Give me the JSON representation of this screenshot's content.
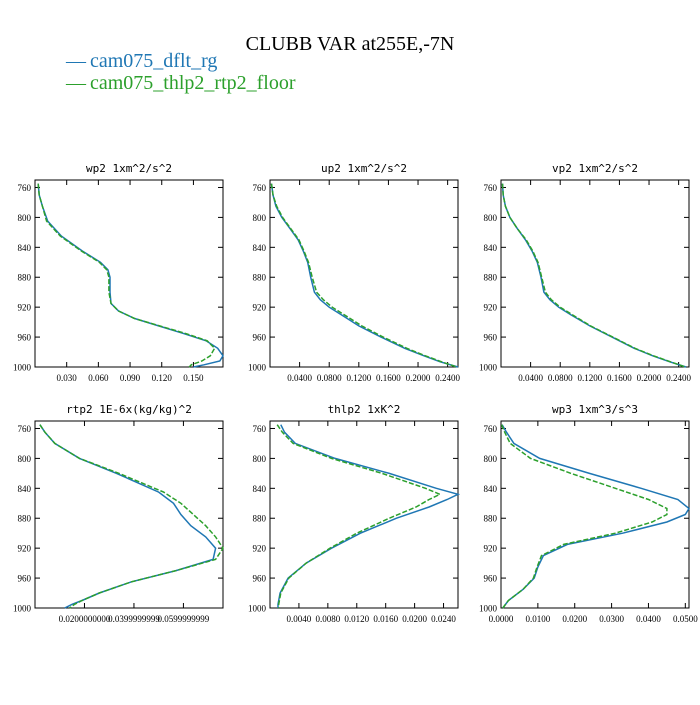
{
  "title": "CLUBB VAR at255E,-7N",
  "colors": {
    "blue": "#1f77b4",
    "green": "#2ca02c",
    "axis": "#000000"
  },
  "legend": [
    {
      "label": "cam075_dflt_rg",
      "color": "#1f77b4",
      "style": "solid"
    },
    {
      "label": "cam075_thlp2_rtp2_floor",
      "color": "#2ca02c",
      "style": "dashed"
    }
  ],
  "legend_marker": "—",
  "chart_data": [
    {
      "type": "line",
      "title": "wp2 1xm^2/s^2",
      "ylim": [
        1000,
        750
      ],
      "yticks": [
        760,
        800,
        840,
        880,
        920,
        960,
        1000
      ],
      "ytick_labels": [
        "760",
        "800",
        "840",
        "880",
        "920",
        "960",
        "1000"
      ],
      "xlim": [
        0.0,
        0.178
      ],
      "xticks": [
        0.03,
        0.06,
        0.09,
        0.12,
        0.15
      ],
      "xtick_labels": [
        "0.030",
        "0.060",
        "0.090",
        "0.120",
        "0.150"
      ],
      "y": [
        755,
        770,
        785,
        805,
        825,
        845,
        860,
        870,
        880,
        900,
        915,
        925,
        935,
        945,
        955,
        965,
        975,
        985,
        992,
        997,
        1000
      ],
      "series": [
        {
          "name": "cam075_dflt_rg",
          "color": "#1f77b4",
          "x": [
            0.003,
            0.004,
            0.007,
            0.012,
            0.025,
            0.045,
            0.062,
            0.069,
            0.071,
            0.071,
            0.072,
            0.079,
            0.094,
            0.117,
            0.14,
            0.162,
            0.173,
            0.178,
            0.175,
            0.16,
            0.15
          ]
        },
        {
          "name": "cam075_thlp2_rtp2_floor",
          "color": "#2ca02c",
          "x": [
            0.003,
            0.004,
            0.007,
            0.011,
            0.024,
            0.044,
            0.061,
            0.068,
            0.07,
            0.07,
            0.072,
            0.079,
            0.094,
            0.118,
            0.142,
            0.163,
            0.17,
            0.166,
            0.158,
            0.148,
            0.146
          ]
        }
      ]
    },
    {
      "type": "line",
      "title": "up2 1xm^2/s^2",
      "ylim": [
        1000,
        750
      ],
      "yticks": [
        760,
        800,
        840,
        880,
        920,
        960,
        1000
      ],
      "ytick_labels": [
        "760",
        "800",
        "840",
        "880",
        "920",
        "960",
        "1000"
      ],
      "xlim": [
        0.0,
        0.254
      ],
      "xticks": [
        0.04,
        0.08,
        0.12,
        0.16,
        0.2,
        0.24
      ],
      "xtick_labels": [
        "0.0400",
        "0.0800",
        "0.1200",
        "0.1600",
        "0.2000",
        "0.2400"
      ],
      "y": [
        755,
        770,
        785,
        800,
        815,
        830,
        845,
        860,
        880,
        900,
        910,
        920,
        930,
        945,
        960,
        975,
        985,
        993,
        1000
      ],
      "series": [
        {
          "name": "cam075_dflt_rg",
          "color": "#1f77b4",
          "x": [
            0.002,
            0.004,
            0.008,
            0.016,
            0.027,
            0.038,
            0.045,
            0.051,
            0.055,
            0.06,
            0.068,
            0.08,
            0.096,
            0.12,
            0.15,
            0.182,
            0.208,
            0.23,
            0.254
          ]
        },
        {
          "name": "cam075_thlp2_rtp2_floor",
          "color": "#2ca02c",
          "x": [
            0.002,
            0.004,
            0.009,
            0.017,
            0.028,
            0.039,
            0.046,
            0.052,
            0.057,
            0.063,
            0.072,
            0.084,
            0.1,
            0.124,
            0.153,
            0.185,
            0.21,
            0.232,
            0.252
          ]
        }
      ]
    },
    {
      "type": "line",
      "title": "vp2 1xm^2/s^2",
      "ylim": [
        1000,
        750
      ],
      "yticks": [
        760,
        800,
        840,
        880,
        920,
        960,
        1000
      ],
      "ytick_labels": [
        "760",
        "800",
        "840",
        "880",
        "920",
        "960",
        "1000"
      ],
      "xlim": [
        0.0,
        0.254
      ],
      "xticks": [
        0.04,
        0.08,
        0.12,
        0.16,
        0.2,
        0.24
      ],
      "xtick_labels": [
        "0.0400",
        "0.0800",
        "0.1200",
        "0.1600",
        "0.2000",
        "0.2400"
      ],
      "y": [
        755,
        770,
        785,
        800,
        815,
        830,
        845,
        860,
        880,
        900,
        910,
        920,
        930,
        945,
        960,
        975,
        985,
        993,
        1000
      ],
      "series": [
        {
          "name": "cam075_dflt_rg",
          "color": "#1f77b4",
          "x": [
            0.002,
            0.003,
            0.006,
            0.012,
            0.022,
            0.033,
            0.042,
            0.049,
            0.054,
            0.058,
            0.066,
            0.078,
            0.094,
            0.12,
            0.15,
            0.18,
            0.205,
            0.228,
            0.25
          ]
        },
        {
          "name": "cam075_thlp2_rtp2_floor",
          "color": "#2ca02c",
          "x": [
            0.002,
            0.003,
            0.006,
            0.012,
            0.022,
            0.034,
            0.043,
            0.05,
            0.055,
            0.06,
            0.068,
            0.08,
            0.096,
            0.121,
            0.151,
            0.181,
            0.206,
            0.229,
            0.249
          ]
        }
      ]
    },
    {
      "type": "line",
      "title": "rtp2 1E-6x(kg/kg)^2",
      "ylim": [
        1000,
        750
      ],
      "yticks": [
        760,
        800,
        840,
        880,
        920,
        960,
        1000
      ],
      "ytick_labels": [
        "760",
        "800",
        "840",
        "880",
        "920",
        "960",
        "1000"
      ],
      "xlim": [
        0.0,
        0.076
      ],
      "xticks": [
        0.02,
        0.04,
        0.06
      ],
      "xtick_labels": [
        "0.0200000000",
        "0.0399999999",
        "0.0599999999"
      ],
      "y": [
        755,
        765,
        780,
        800,
        820,
        845,
        860,
        875,
        890,
        905,
        920,
        935,
        950,
        965,
        980,
        990,
        995,
        1000
      ],
      "series": [
        {
          "name": "cam075_dflt_rg",
          "color": "#1f77b4",
          "x": [
            0.002,
            0.004,
            0.008,
            0.018,
            0.033,
            0.05,
            0.056,
            0.059,
            0.063,
            0.069,
            0.073,
            0.072,
            0.057,
            0.039,
            0.026,
            0.019,
            0.015,
            0.012
          ]
        },
        {
          "name": "cam075_thlp2_rtp2_floor",
          "color": "#2ca02c",
          "x": [
            0.002,
            0.004,
            0.008,
            0.018,
            0.034,
            0.052,
            0.059,
            0.064,
            0.069,
            0.073,
            0.076,
            0.073,
            0.057,
            0.039,
            0.026,
            0.019,
            0.016,
            0.014
          ]
        }
      ]
    },
    {
      "type": "line",
      "title": "thlp2 1xK^2",
      "ylim": [
        1000,
        750
      ],
      "yticks": [
        760,
        800,
        840,
        880,
        920,
        960,
        1000
      ],
      "ytick_labels": [
        "760",
        "800",
        "840",
        "880",
        "920",
        "960",
        "1000"
      ],
      "xlim": [
        0.0,
        0.026
      ],
      "xticks": [
        0.004,
        0.008,
        0.012,
        0.016,
        0.02,
        0.024
      ],
      "xtick_labels": [
        "0.0040",
        "0.0080",
        "0.0120",
        "0.0160",
        "0.0200",
        "0.0240"
      ],
      "y": [
        755,
        765,
        780,
        800,
        820,
        840,
        848,
        855,
        865,
        880,
        900,
        920,
        940,
        960,
        980,
        995,
        1000
      ],
      "series": [
        {
          "name": "cam075_dflt_rg",
          "color": "#1f77b4",
          "x": [
            0.0015,
            0.002,
            0.0035,
            0.009,
            0.0165,
            0.023,
            0.026,
            0.0245,
            0.022,
            0.0175,
            0.0125,
            0.0085,
            0.005,
            0.0025,
            0.0014,
            0.0011,
            0.0011
          ]
        },
        {
          "name": "cam075_thlp2_rtp2_floor",
          "color": "#2ca02c",
          "x": [
            0.001,
            0.0017,
            0.0032,
            0.0085,
            0.0155,
            0.0215,
            0.0235,
            0.022,
            0.0202,
            0.0165,
            0.012,
            0.0083,
            0.005,
            0.0026,
            0.0015,
            0.0012,
            0.0012
          ]
        }
      ]
    },
    {
      "type": "line",
      "title": "wp3 1xm^3/s^3",
      "ylim": [
        1000,
        750
      ],
      "yticks": [
        760,
        800,
        840,
        880,
        920,
        960,
        1000
      ],
      "ytick_labels": [
        "760",
        "800",
        "840",
        "880",
        "920",
        "960",
        "1000"
      ],
      "xlim": [
        0.0,
        0.051
      ],
      "xticks": [
        0.0,
        0.01,
        0.02,
        0.03,
        0.04,
        0.05
      ],
      "xtick_labels": [
        "0.0000",
        "0.0100",
        "0.0200",
        "0.0300",
        "0.0400",
        "0.0500"
      ],
      "y": [
        755,
        765,
        780,
        800,
        820,
        840,
        855,
        867,
        875,
        885,
        900,
        915,
        930,
        945,
        960,
        975,
        990,
        1000
      ],
      "series": [
        {
          "name": "cam075_dflt_rg",
          "color": "#1f77b4",
          "x": [
            0.0003,
            0.0015,
            0.0035,
            0.0105,
            0.024,
            0.038,
            0.048,
            0.051,
            0.05,
            0.045,
            0.033,
            0.018,
            0.0115,
            0.01,
            0.009,
            0.006,
            0.002,
            0.0005
          ]
        },
        {
          "name": "cam075_thlp2_rtp2_floor",
          "color": "#2ca02c",
          "x": [
            0.0002,
            0.001,
            0.0025,
            0.008,
            0.019,
            0.031,
            0.04,
            0.045,
            0.045,
            0.041,
            0.031,
            0.017,
            0.011,
            0.0098,
            0.0088,
            0.006,
            0.002,
            0.0005
          ]
        }
      ]
    }
  ]
}
